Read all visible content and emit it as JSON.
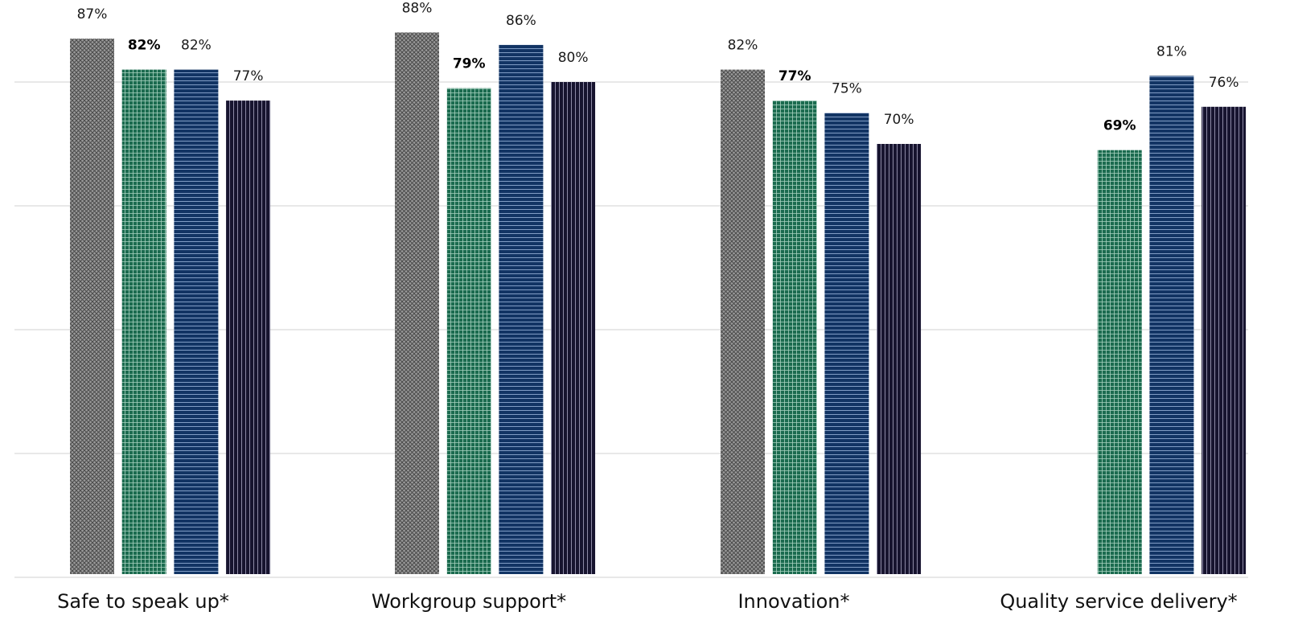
{
  "chart_data": {
    "type": "bar",
    "categories": [
      "Safe to speak up*",
      "Workgroup support*",
      "Innovation*",
      "Quality service delivery*"
    ],
    "series": [
      {
        "values": [
          87,
          88,
          82,
          null
        ],
        "labels": [
          "87%",
          "88%",
          "82%",
          ""
        ],
        "color": "#8c8c8c",
        "pattern": "crosshatch",
        "bold": false
      },
      {
        "values": [
          82,
          79,
          77,
          69
        ],
        "labels": [
          "82%",
          "79%",
          "77%",
          "69%"
        ],
        "color": "#1b6b4f",
        "pattern": "grid",
        "bold": true
      },
      {
        "values": [
          82,
          86,
          75,
          81
        ],
        "labels": [
          "82%",
          "86%",
          "75%",
          "81%"
        ],
        "color": "#123464",
        "pattern": "horizontal-lines",
        "bold": false
      },
      {
        "values": [
          77,
          80,
          70,
          76
        ],
        "labels": [
          "77%",
          "80%",
          "70%",
          "76%"
        ],
        "color": "#17142f",
        "pattern": "vertical-lines",
        "bold": false
      }
    ],
    "ylim": [
      0,
      100
    ],
    "grid": true,
    "legend": "none"
  }
}
